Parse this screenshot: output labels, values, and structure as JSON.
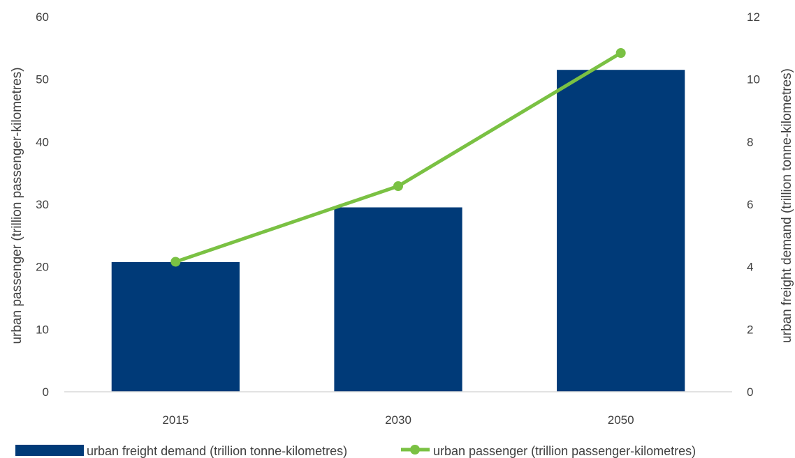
{
  "chart_data": {
    "type": "bar",
    "categories": [
      "2015",
      "2030",
      "2050"
    ],
    "series": [
      {
        "name": "urban freight demand (trillion tonne-kilometres)",
        "type": "bar",
        "axis": "right",
        "values": [
          4.15,
          5.9,
          10.3
        ],
        "color": "#003A78"
      },
      {
        "name": "urban passenger (trillion passenger-kilometres)",
        "type": "line",
        "axis": "left",
        "values": [
          20.8,
          32.9,
          54.2
        ],
        "color": "#7AC143"
      }
    ],
    "ylabel": "urban passenger (trillion passenger-kilometres)",
    "ylabel_right": "urban freight demand (trillion tonne-kilometres)",
    "ylim": [
      0,
      60
    ],
    "ylim_right": [
      0,
      12
    ],
    "yticks": [
      "0",
      "10",
      "20",
      "30",
      "40",
      "50",
      "60"
    ],
    "yticks_right": [
      "0",
      "2",
      "4",
      "6",
      "8",
      "10",
      "12"
    ],
    "grid": false,
    "legend_position": "bottom"
  }
}
